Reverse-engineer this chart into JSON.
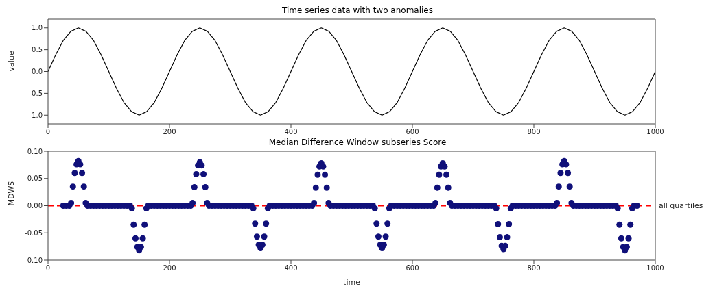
{
  "chart_data": [
    {
      "type": "line",
      "title": "Time series data with two anomalies",
      "ylabel": "value",
      "xlim": [
        0,
        1000
      ],
      "xticks": [
        0,
        200,
        400,
        600,
        800,
        1000
      ],
      "ylim": [
        -1.2,
        1.2
      ],
      "yticks": [
        {
          "value": -1,
          "label": "-1.0"
        },
        {
          "value": -0.5,
          "label": "-0.5"
        },
        {
          "value": 0,
          "label": "0.0"
        },
        {
          "value": 0.5,
          "label": "0.5"
        },
        {
          "value": 1,
          "label": "1.0"
        }
      ],
      "marker": "none",
      "line_style": "solid",
      "series": [
        {
          "color": "#000000",
          "x": [
            0,
            12.5,
            25,
            37.5,
            50,
            62.5,
            75,
            87.5,
            100,
            112.5,
            125,
            137.5,
            150,
            162.5,
            175,
            187.5,
            200,
            212.5,
            225,
            237.5,
            250,
            262.5,
            275,
            287.5,
            300,
            312.5,
            325,
            337.5,
            350,
            362.5,
            375,
            387.5,
            400,
            412.5,
            425,
            437.5,
            450,
            462.5,
            475,
            487.5,
            500,
            512.5,
            525,
            537.5,
            550,
            562.5,
            575,
            587.5,
            600,
            612.5,
            625,
            637.5,
            650,
            662.5,
            675,
            687.5,
            700,
            712.5,
            725,
            737.5,
            750,
            762.5,
            775,
            787.5,
            800,
            812.5,
            825,
            837.5,
            850,
            862.5,
            875,
            887.5,
            900,
            912.5,
            925,
            937.5,
            950,
            962.5,
            975,
            987.5,
            1000
          ],
          "values": [
            0,
            0.38,
            0.71,
            0.92,
            1,
            0.92,
            0.71,
            0.38,
            0,
            -0.38,
            -0.71,
            -0.92,
            -1,
            -0.92,
            -0.71,
            -0.38,
            0,
            0.38,
            0.71,
            0.92,
            1,
            0.92,
            0.71,
            0.38,
            0,
            -0.38,
            -0.71,
            -0.92,
            -1,
            -0.92,
            -0.71,
            -0.38,
            0,
            0.38,
            0.71,
            0.92,
            1,
            0.92,
            0.71,
            0.38,
            0,
            -0.38,
            -0.71,
            -0.92,
            -1,
            -0.92,
            -0.71,
            -0.38,
            0,
            0.38,
            0.71,
            0.92,
            1,
            0.92,
            0.71,
            0.38,
            0,
            -0.38,
            -0.71,
            -0.92,
            -1,
            -0.92,
            -0.71,
            -0.38,
            0,
            0.38,
            0.71,
            0.92,
            1,
            0.92,
            0.71,
            0.38,
            0,
            -0.38,
            -0.71,
            -0.92,
            -1,
            -0.92,
            -0.71,
            -0.38,
            0
          ]
        }
      ]
    },
    {
      "type": "scatter",
      "title": "Median Difference Window subseries Score",
      "xlabel": "time",
      "ylabel": "MDWS",
      "xlim": [
        0,
        1000
      ],
      "xticks": [
        0,
        200,
        400,
        600,
        800,
        1000
      ],
      "ylim": [
        -0.1,
        0.1
      ],
      "yticks": [
        {
          "value": -0.1,
          "label": "-0.10"
        },
        {
          "value": -0.05,
          "label": "-0.05"
        },
        {
          "value": 0,
          "label": "0.00"
        },
        {
          "value": 0.05,
          "label": "0.05"
        },
        {
          "value": 0.1,
          "label": "0.10"
        }
      ],
      "marker": "circle",
      "ref_lines": [
        {
          "axis": "y",
          "value": 0,
          "label": "all quartiles",
          "color": "#ff0000",
          "line_style": "dashed"
        }
      ],
      "series": [
        {
          "color": "#10107a",
          "x": [
            25,
            30,
            35,
            38,
            41,
            44,
            47,
            50,
            53,
            56,
            59,
            62,
            65,
            70,
            75,
            80,
            85,
            90,
            95,
            100,
            105,
            110,
            115,
            120,
            125,
            130,
            135,
            138,
            141,
            144,
            147,
            150,
            153,
            156,
            159,
            162,
            165,
            170,
            175,
            180,
            185,
            190,
            195,
            200,
            205,
            210,
            215,
            220,
            225,
            230,
            235,
            238,
            241,
            244,
            247,
            250,
            253,
            256,
            259,
            262,
            265,
            270,
            275,
            280,
            285,
            290,
            295,
            300,
            305,
            310,
            315,
            320,
            325,
            330,
            335,
            338,
            341,
            344,
            347,
            350,
            353,
            356,
            359,
            362,
            365,
            370,
            375,
            380,
            385,
            390,
            395,
            400,
            405,
            410,
            415,
            420,
            425,
            430,
            435,
            438,
            441,
            444,
            447,
            450,
            453,
            456,
            459,
            462,
            465,
            470,
            475,
            480,
            485,
            490,
            495,
            500,
            505,
            510,
            515,
            520,
            525,
            530,
            535,
            538,
            541,
            544,
            547,
            550,
            553,
            556,
            559,
            562,
            565,
            570,
            575,
            580,
            585,
            590,
            595,
            600,
            605,
            610,
            615,
            620,
            625,
            630,
            635,
            638,
            641,
            644,
            647,
            650,
            653,
            656,
            659,
            662,
            665,
            670,
            675,
            680,
            685,
            690,
            695,
            700,
            705,
            710,
            715,
            720,
            725,
            730,
            735,
            738,
            741,
            744,
            747,
            750,
            753,
            756,
            759,
            762,
            765,
            770,
            775,
            780,
            785,
            790,
            795,
            800,
            805,
            810,
            815,
            820,
            825,
            830,
            835,
            838,
            841,
            844,
            847,
            850,
            853,
            856,
            859,
            862,
            865,
            870,
            875,
            880,
            885,
            890,
            895,
            900,
            905,
            910,
            915,
            920,
            925,
            930,
            935,
            938,
            941,
            944,
            947,
            950,
            953,
            956,
            959,
            962,
            965,
            970
          ],
          "values": [
            0,
            0,
            0,
            0.005,
            0.035,
            0.06,
            0.076,
            0.082,
            0.076,
            0.06,
            0.035,
            0.005,
            0,
            0,
            0,
            0,
            0,
            0,
            0,
            0,
            0,
            0,
            0,
            0,
            0,
            0,
            0,
            -0.005,
            -0.035,
            -0.06,
            -0.076,
            -0.082,
            -0.076,
            -0.06,
            -0.035,
            -0.005,
            0,
            0,
            0,
            0,
            0,
            0,
            0,
            0,
            0,
            0,
            0,
            0,
            0,
            0,
            0,
            0.005,
            0.034,
            0.058,
            0.074,
            0.08,
            0.074,
            0.058,
            0.034,
            0.005,
            0,
            0,
            0,
            0,
            0,
            0,
            0,
            0,
            0,
            0,
            0,
            0,
            0,
            0,
            0,
            -0.005,
            -0.033,
            -0.057,
            -0.072,
            -0.078,
            -0.072,
            -0.057,
            -0.033,
            -0.005,
            0,
            0,
            0,
            0,
            0,
            0,
            0,
            0,
            0,
            0,
            0,
            0,
            0,
            0,
            0,
            0.005,
            0.033,
            0.057,
            0.072,
            0.078,
            0.072,
            0.057,
            0.033,
            0.005,
            0,
            0,
            0,
            0,
            0,
            0,
            0,
            0,
            0,
            0,
            0,
            0,
            0,
            0,
            0,
            -0.005,
            -0.033,
            -0.057,
            -0.072,
            -0.078,
            -0.072,
            -0.057,
            -0.033,
            -0.005,
            0,
            0,
            0,
            0,
            0,
            0,
            0,
            0,
            0,
            0,
            0,
            0,
            0,
            0,
            0,
            0.005,
            0.033,
            0.057,
            0.072,
            0.078,
            0.072,
            0.057,
            0.033,
            0.005,
            0,
            0,
            0,
            0,
            0,
            0,
            0,
            0,
            0,
            0,
            0,
            0,
            0,
            0,
            0,
            -0.005,
            -0.034,
            -0.058,
            -0.074,
            -0.08,
            -0.074,
            -0.058,
            -0.034,
            -0.005,
            0,
            0,
            0,
            0,
            0,
            0,
            0,
            0,
            0,
            0,
            0,
            0,
            0,
            0,
            0,
            0.005,
            0.035,
            0.06,
            0.076,
            0.082,
            0.076,
            0.06,
            0.035,
            0.005,
            0,
            0,
            0,
            0,
            0,
            0,
            0,
            0,
            0,
            0,
            0,
            0,
            0,
            0,
            0,
            -0.005,
            -0.035,
            -0.06,
            -0.076,
            -0.082,
            -0.076,
            -0.06,
            -0.035,
            -0.005,
            0,
            0
          ]
        }
      ]
    }
  ]
}
